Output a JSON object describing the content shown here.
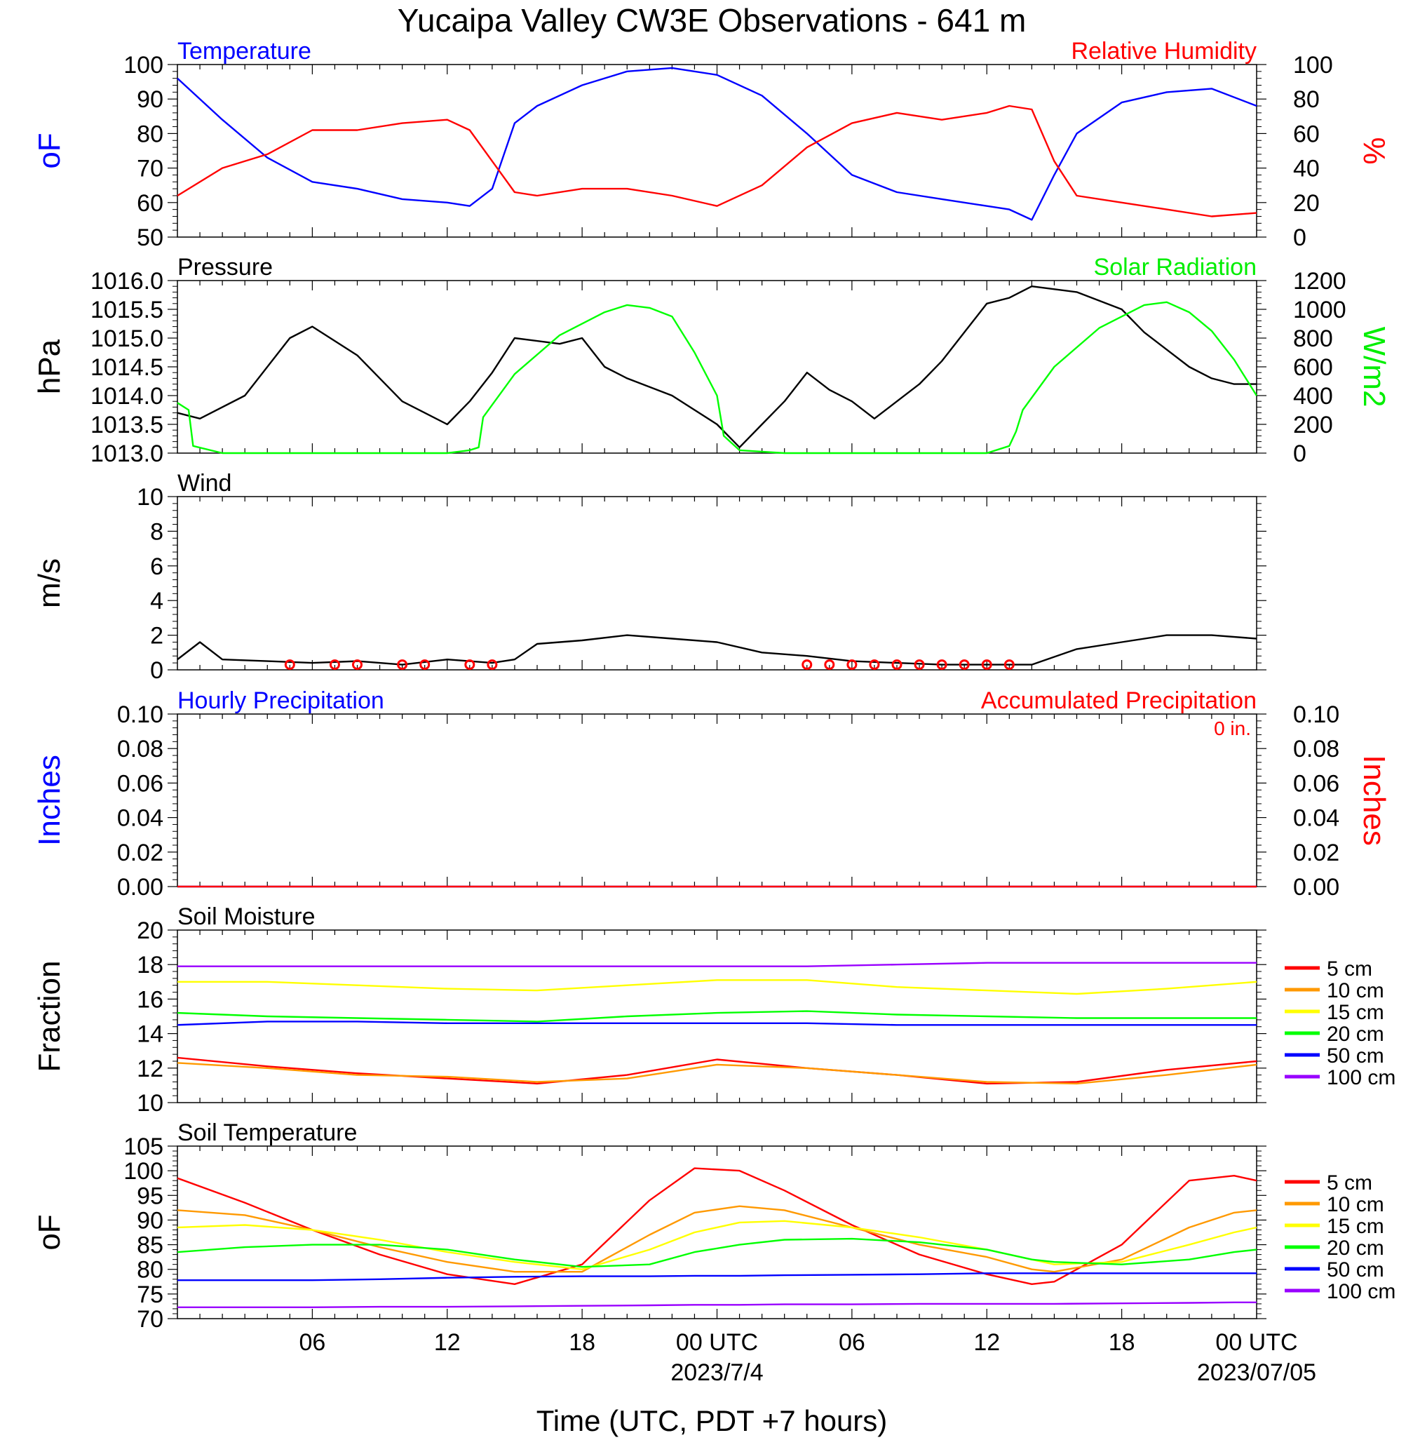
{
  "title": "Yucaipa Valley CW3E Observations - 641 m",
  "x_axis": {
    "label": "Time (UTC, PDT +7 hours)",
    "tick_labels": [
      "06",
      "12",
      "18",
      "00 UTC",
      "06",
      "12",
      "18",
      "00 UTC"
    ],
    "date_labels": [
      "2023/7/4",
      "2023/07/05"
    ]
  },
  "legend_soil_moisture": [
    {
      "label": "5 cm",
      "color": "#ff0000"
    },
    {
      "label": "10 cm",
      "color": "#ff9900"
    },
    {
      "label": "15 cm",
      "color": "#ffff00"
    },
    {
      "label": "20 cm",
      "color": "#00ff00"
    },
    {
      "label": "50 cm",
      "color": "#0000ff"
    },
    {
      "label": "100 cm",
      "color": "#9900ff"
    }
  ],
  "legend_soil_temperature": [
    {
      "label": "5 cm",
      "color": "#ff0000"
    },
    {
      "label": "10 cm",
      "color": "#ff9900"
    },
    {
      "label": "15 cm",
      "color": "#ffff00"
    },
    {
      "label": "20 cm",
      "color": "#00ff00"
    },
    {
      "label": "50 cm",
      "color": "#0000ff"
    },
    {
      "label": "100 cm",
      "color": "#9900ff"
    }
  ],
  "chart_data": [
    {
      "type": "line",
      "panel": "temperature_rh",
      "left_title": "Temperature",
      "right_title": "Relative Humidity",
      "ylabel": "oF",
      "ylabel2": "%",
      "ylim": [
        50,
        100
      ],
      "ylim2": [
        0,
        100
      ],
      "yticks": [
        "50",
        "60",
        "70",
        "80",
        "90",
        "100"
      ],
      "yticks2": [
        "0",
        "20",
        "40",
        "60",
        "80",
        "100"
      ],
      "x_hours": [
        0,
        2,
        4,
        6,
        8,
        10,
        12,
        13,
        14,
        15,
        16,
        18,
        20,
        22,
        24,
        26,
        28,
        30,
        32,
        34,
        36,
        37,
        38,
        39,
        40,
        42,
        44,
        46,
        48
      ],
      "series": [
        {
          "color": "#0000ff",
          "axis": "left",
          "values": [
            96,
            84,
            73,
            66,
            64,
            61,
            60,
            59,
            64,
            83,
            88,
            94,
            98,
            99,
            97,
            91,
            80,
            68,
            63,
            61,
            59,
            58,
            55,
            68,
            80,
            89,
            92,
            93,
            88
          ]
        },
        {
          "color": "#ff0000",
          "axis": "right",
          "values": [
            24,
            40,
            48,
            62,
            62,
            66,
            68,
            62,
            44,
            26,
            24,
            28,
            28,
            24,
            18,
            30,
            52,
            66,
            72,
            68,
            72,
            76,
            74,
            44,
            24,
            20,
            16,
            12,
            14
          ]
        }
      ]
    },
    {
      "type": "line",
      "panel": "pressure_solar",
      "left_title": "Pressure",
      "right_title": "Solar Radiation",
      "ylabel": "hPa",
      "ylabel2": "W/m2",
      "ylim": [
        1013.0,
        1016.0
      ],
      "ylim2": [
        0,
        1200
      ],
      "yticks": [
        "1013.0",
        "1013.5",
        "1014.0",
        "1014.5",
        "1015.0",
        "1015.5",
        "1016.0"
      ],
      "yticks2": [
        "0",
        "200",
        "400",
        "600",
        "800",
        "1000",
        "1200"
      ],
      "series": [
        {
          "color": "#000000",
          "axis": "left",
          "x_hours": [
            0,
            1,
            3,
            5,
            6,
            8,
            10,
            11,
            12,
            13,
            14,
            15,
            17,
            18,
            19,
            20,
            22,
            24,
            25,
            26,
            27,
            28,
            29,
            30,
            31,
            32,
            33,
            34,
            35,
            36,
            37,
            38,
            40,
            42,
            43,
            44,
            45,
            46,
            47,
            48
          ],
          "values": [
            1013.7,
            1013.6,
            1014.0,
            1015.0,
            1015.2,
            1014.7,
            1013.9,
            1013.7,
            1013.5,
            1013.9,
            1014.4,
            1015.0,
            1014.9,
            1015.0,
            1014.5,
            1014.3,
            1014.0,
            1013.5,
            1013.1,
            1013.5,
            1013.9,
            1014.4,
            1014.1,
            1013.9,
            1013.6,
            1013.9,
            1014.2,
            1014.6,
            1015.1,
            1015.6,
            1015.7,
            1015.9,
            1015.8,
            1015.5,
            1015.1,
            1014.8,
            1014.5,
            1014.3,
            1014.2,
            1014.2
          ]
        },
        {
          "color": "#00ff00",
          "axis": "right",
          "x_hours": [
            0,
            0.5,
            0.7,
            2,
            6,
            10,
            12,
            13,
            13.4,
            13.6,
            15,
            17,
            19,
            20,
            21,
            22,
            23,
            24,
            24.3,
            25,
            27,
            30,
            34,
            36,
            37,
            37.3,
            37.6,
            39,
            41,
            43,
            44,
            45,
            46,
            47,
            48
          ],
          "values": [
            350,
            300,
            50,
            0,
            0,
            0,
            0,
            20,
            40,
            250,
            550,
            820,
            980,
            1030,
            1010,
            950,
            700,
            400,
            120,
            20,
            0,
            0,
            0,
            0,
            50,
            150,
            300,
            600,
            870,
            1030,
            1050,
            980,
            850,
            650,
            400
          ]
        }
      ]
    },
    {
      "type": "line",
      "panel": "wind",
      "left_title": "Wind",
      "ylabel": "m/s",
      "ylim": [
        0,
        10
      ],
      "yticks": [
        "0",
        "2",
        "4",
        "6",
        "8",
        "10"
      ],
      "x_hours": [
        0,
        1,
        2,
        4,
        6,
        8,
        10,
        12,
        14,
        15,
        16,
        18,
        20,
        22,
        24,
        26,
        28,
        30,
        32,
        34,
        36,
        37,
        38,
        40,
        42,
        44,
        46,
        48
      ],
      "series": [
        {
          "color": "#000000",
          "values": [
            0.6,
            1.6,
            0.6,
            0.5,
            0.4,
            0.5,
            0.3,
            0.6,
            0.4,
            0.6,
            1.5,
            1.7,
            2.0,
            1.8,
            1.6,
            1.0,
            0.8,
            0.5,
            0.4,
            0.3,
            0.3,
            0.3,
            0.3,
            1.2,
            1.6,
            2.0,
            2.0,
            1.8
          ]
        }
      ],
      "calm_markers_hours": [
        5,
        7,
        8,
        10,
        11,
        13,
        14,
        28,
        29,
        30,
        31,
        32,
        33,
        34,
        35,
        36,
        37
      ]
    },
    {
      "type": "line",
      "panel": "precipitation",
      "left_title": "Hourly Precipitation",
      "right_title": "Accumulated Precipitation",
      "annotation": "0 in.",
      "ylabel": "Inches",
      "ylabel2": "Inches",
      "ylim": [
        0,
        0.1
      ],
      "yticks": [
        "0.00",
        "0.02",
        "0.04",
        "0.06",
        "0.08",
        "0.10"
      ],
      "x_hours": [
        0,
        48
      ],
      "series": [
        {
          "color": "#0000ff",
          "values": [
            0,
            0
          ]
        },
        {
          "color": "#ff0000",
          "values": [
            0,
            0
          ]
        }
      ]
    },
    {
      "type": "line",
      "panel": "soil_moisture",
      "left_title": "Soil Moisture",
      "ylabel": "Fraction",
      "ylim": [
        10,
        20
      ],
      "yticks": [
        "10",
        "12",
        "14",
        "16",
        "18",
        "20"
      ],
      "x_hours": [
        0,
        4,
        8,
        12,
        16,
        20,
        24,
        28,
        32,
        36,
        40,
        44,
        48
      ],
      "series": [
        {
          "name": "5 cm",
          "color": "#ff0000",
          "values": [
            12.6,
            12.1,
            11.7,
            11.4,
            11.1,
            11.6,
            12.5,
            12.0,
            11.6,
            11.1,
            11.2,
            11.9,
            12.4
          ]
        },
        {
          "name": "10 cm",
          "color": "#ff9900",
          "values": [
            12.3,
            12.0,
            11.6,
            11.5,
            11.2,
            11.4,
            12.2,
            12.0,
            11.6,
            11.2,
            11.1,
            11.6,
            12.2
          ]
        },
        {
          "name": "15 cm",
          "color": "#ffff00",
          "values": [
            17.0,
            17.0,
            16.8,
            16.6,
            16.5,
            16.8,
            17.1,
            17.1,
            16.7,
            16.5,
            16.3,
            16.6,
            17.0
          ]
        },
        {
          "name": "20 cm",
          "color": "#00ff00",
          "values": [
            15.2,
            15.0,
            14.9,
            14.8,
            14.7,
            15.0,
            15.2,
            15.3,
            15.1,
            15.0,
            14.9,
            14.9,
            14.9
          ]
        },
        {
          "name": "50 cm",
          "color": "#0000ff",
          "values": [
            14.5,
            14.7,
            14.7,
            14.6,
            14.6,
            14.6,
            14.6,
            14.6,
            14.5,
            14.5,
            14.5,
            14.5,
            14.5
          ]
        },
        {
          "name": "100 cm",
          "color": "#9900ff",
          "values": [
            17.9,
            17.9,
            17.9,
            17.9,
            17.9,
            17.9,
            17.9,
            17.9,
            18.0,
            18.1,
            18.1,
            18.1,
            18.1
          ]
        }
      ]
    },
    {
      "type": "line",
      "panel": "soil_temperature",
      "left_title": "Soil Temperature",
      "ylabel": "oF",
      "ylim": [
        70,
        105
      ],
      "yticks": [
        "70",
        "75",
        "80",
        "85",
        "90",
        "95",
        "100",
        "105"
      ],
      "x_hours": [
        0,
        3,
        6,
        9,
        12,
        15,
        18,
        21,
        23,
        25,
        27,
        30,
        33,
        36,
        38,
        39,
        42,
        45,
        47,
        48
      ],
      "series": [
        {
          "name": "5 cm",
          "color": "#ff0000",
          "values": [
            98.5,
            93.5,
            88.0,
            83.0,
            79.0,
            77.0,
            81.0,
            94.0,
            100.5,
            100.0,
            96.0,
            89.0,
            83.0,
            79.0,
            77.0,
            77.5,
            85.0,
            98.0,
            99.0,
            98.0
          ]
        },
        {
          "name": "10 cm",
          "color": "#ff9900",
          "values": [
            92.0,
            91.0,
            88.0,
            84.5,
            81.5,
            79.5,
            79.5,
            87.0,
            91.5,
            92.8,
            92.0,
            88.5,
            85.0,
            82.5,
            80.0,
            79.5,
            82.0,
            88.5,
            91.5,
            92.0
          ]
        },
        {
          "name": "15 cm",
          "color": "#ffff00",
          "values": [
            88.5,
            89.0,
            88.0,
            86.0,
            83.5,
            81.5,
            80.0,
            84.0,
            87.5,
            89.5,
            89.8,
            88.5,
            86.5,
            84.0,
            82.0,
            81.0,
            81.5,
            85.0,
            87.5,
            88.5
          ]
        },
        {
          "name": "20 cm",
          "color": "#00ff00",
          "values": [
            83.5,
            84.5,
            85.0,
            85.0,
            84.0,
            82.0,
            80.5,
            81.0,
            83.5,
            85.0,
            86.0,
            86.2,
            85.5,
            84.0,
            82.0,
            81.5,
            81.0,
            82.0,
            83.5,
            84.0
          ]
        },
        {
          "name": "50 cm",
          "color": "#0000ff",
          "values": [
            77.8,
            77.8,
            77.8,
            78.0,
            78.3,
            78.5,
            78.6,
            78.6,
            78.7,
            78.7,
            78.8,
            78.9,
            79.0,
            79.2,
            79.2,
            79.2,
            79.2,
            79.2,
            79.2,
            79.2
          ]
        },
        {
          "name": "100 cm",
          "color": "#9900ff",
          "values": [
            72.3,
            72.3,
            72.3,
            72.4,
            72.4,
            72.5,
            72.6,
            72.7,
            72.8,
            72.8,
            72.9,
            72.9,
            73.0,
            73.0,
            73.0,
            73.0,
            73.1,
            73.2,
            73.3,
            73.3
          ]
        }
      ]
    }
  ]
}
